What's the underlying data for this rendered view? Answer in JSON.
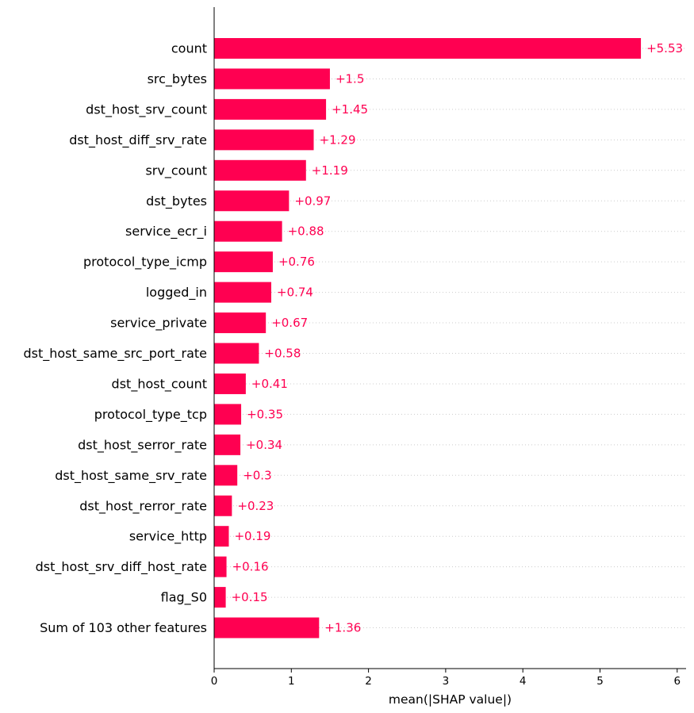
{
  "chart_data": {
    "type": "bar",
    "orientation": "horizontal",
    "categories": [
      "count",
      "src_bytes",
      "dst_host_srv_count",
      "dst_host_diff_srv_rate",
      "srv_count",
      "dst_bytes",
      "service_ecr_i",
      "protocol_type_icmp",
      "logged_in",
      "service_private",
      "dst_host_same_src_port_rate",
      "dst_host_count",
      "protocol_type_tcp",
      "dst_host_serror_rate",
      "dst_host_same_srv_rate",
      "dst_host_rerror_rate",
      "service_http",
      "dst_host_srv_diff_host_rate",
      "flag_S0",
      "Sum of 103 other features"
    ],
    "values": [
      5.53,
      1.5,
      1.45,
      1.29,
      1.19,
      0.97,
      0.88,
      0.76,
      0.74,
      0.67,
      0.58,
      0.41,
      0.35,
      0.34,
      0.3,
      0.23,
      0.19,
      0.16,
      0.15,
      1.36
    ],
    "value_labels": [
      "+5.53",
      "+1.5",
      "+1.45",
      "+1.29",
      "+1.19",
      "+0.97",
      "+0.88",
      "+0.76",
      "+0.74",
      "+0.67",
      "+0.58",
      "+0.41",
      "+0.35",
      "+0.34",
      "+0.3",
      "+0.23",
      "+0.19",
      "+0.16",
      "+0.15",
      "+1.36"
    ],
    "xlabel": "mean(|SHAP value|)",
    "ylabel": "",
    "title": "",
    "xlim": [
      0,
      6.1
    ],
    "xticks": [
      0,
      1,
      2,
      3,
      4,
      5,
      6
    ],
    "xtick_labels": [
      "0",
      "1",
      "2",
      "3",
      "4",
      "5",
      "6"
    ],
    "grid": "dotted horizontal row guides",
    "legend": "none",
    "bar_color": "#ff0051",
    "label_color": "#ff0051"
  }
}
